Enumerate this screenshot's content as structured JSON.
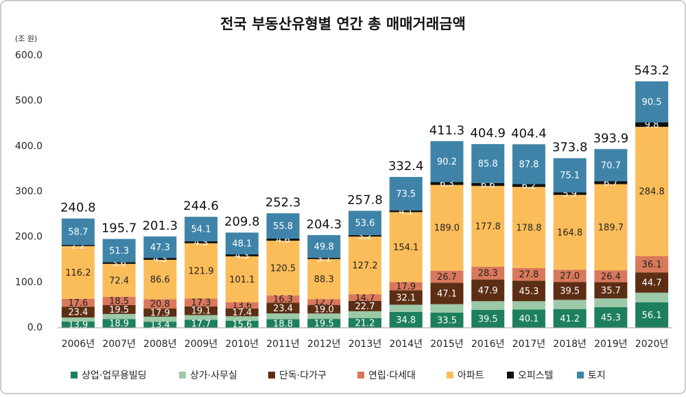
{
  "chart_data": {
    "type": "stacked_bar",
    "title": "전국 부동산유형별 연간 총 매매거래금액",
    "y_label": "(조 원)",
    "categories": [
      "2006년",
      "2007년",
      "2008년",
      "2009년",
      "2010년",
      "2011년",
      "2012년",
      "2013년",
      "2014년",
      "2015년",
      "2016년",
      "2017년",
      "2018년",
      "2019년",
      "2020년"
    ],
    "ylim": [
      0,
      600
    ],
    "yticks": [
      {
        "value": 0,
        "label": "0.0"
      },
      {
        "value": 100,
        "label": "100.0"
      },
      {
        "value": 200,
        "label": "200.0"
      },
      {
        "value": 300,
        "label": "300.0"
      },
      {
        "value": 400,
        "label": "400.0"
      },
      {
        "value": 500,
        "label": "500.0"
      },
      {
        "value": 600,
        "label": "600.0"
      }
    ],
    "grid": false,
    "legend": "bottom",
    "series": [
      {
        "name": "상업·업무용빌딩",
        "color": "#1e7f5c",
        "label_color": "#ffffff",
        "values": [
          13.9,
          18.9,
          13.4,
          17.7,
          15.6,
          18.8,
          19.5,
          21.2,
          34.8,
          33.5,
          39.5,
          40.1,
          41.2,
          45.3,
          56.1
        ],
        "value_labels": [
          "13.9",
          "18.9",
          "13.4",
          "17.7",
          "15.6",
          "18.8",
          "19.5",
          "21.2",
          "34.8",
          "33.5",
          "39.5",
          "40.1",
          "41.2",
          "45.3",
          "56.1"
        ]
      },
      {
        "name": "상가·사무실",
        "color": "#9cc9a8",
        "values": [
          8.8,
          11.5,
          11.0,
          10.2,
          9.7,
          12.9,
          11.9,
          15.2,
          15.9,
          18.5,
          19.0,
          18.4,
          20.3,
          19.4,
          21.2
        ]
      },
      {
        "name": "단독·다가구",
        "color": "#5c2e14",
        "label_color": "#ffffff",
        "values": [
          23.4,
          19.5,
          17.9,
          19.1,
          17.4,
          23.4,
          19.0,
          22.7,
          32.1,
          47.1,
          47.9,
          45.3,
          39.5,
          35.7,
          44.7
        ],
        "value_labels": [
          "23.4",
          "19.5",
          "17.9",
          "19.1",
          "17.4",
          "23.4",
          "19.0",
          "22.7",
          "32.1",
          "47.1",
          "47.9",
          "45.3",
          "39.5",
          "35.7",
          "44.7"
        ]
      },
      {
        "name": "연립·다세대",
        "color": "#d9785b",
        "label_color": "#222222",
        "values": [
          17.6,
          18.5,
          20.8,
          17.3,
          13.6,
          16.3,
          12.7,
          14.7,
          17.9,
          26.7,
          28.3,
          27.8,
          27.0,
          26.4,
          36.1
        ],
        "value_labels": [
          "17.6",
          "18.5",
          "20.8",
          "17.3",
          "13.6",
          "16.3",
          "12.7",
          "14.7",
          "17.9",
          "26.7",
          "28.3",
          "27.8",
          "27.0",
          "26.4",
          "36.1"
        ]
      },
      {
        "name": "아파트",
        "color": "#fbbd5a",
        "label_color": "#222222",
        "values": [
          116.2,
          72.4,
          86.6,
          121.9,
          101.1,
          120.5,
          88.3,
          127.2,
          154.1,
          189.0,
          177.8,
          178.8,
          164.8,
          189.7,
          284.8
        ],
        "value_labels": [
          "116.2",
          "72.4",
          "86.6",
          "121.9",
          "101.1",
          "120.5",
          "88.3",
          "127.2",
          "154.1",
          "189.0",
          "177.8",
          "178.8",
          "164.8",
          "189.7",
          "284.8"
        ]
      },
      {
        "name": "오피스텔",
        "color": "#111111",
        "label_color": "#ffffff",
        "values": [
          2.2,
          3.6,
          4.3,
          4.3,
          4.3,
          4.6,
          3.1,
          3.2,
          4.1,
          6.3,
          6.6,
          6.2,
          5.9,
          6.7,
          9.8
        ],
        "value_labels": [
          "2.2",
          "3.6",
          "4.3",
          "4.3",
          "4.3",
          "4.6",
          "3.1",
          "3.2",
          "4.1",
          "6.3",
          "6.6",
          "6.2",
          "5.9",
          "6.7",
          "9.8"
        ]
      },
      {
        "name": "토지",
        "color": "#3f84a8",
        "label_color": "#ffffff",
        "values": [
          58.7,
          51.3,
          47.3,
          54.1,
          48.1,
          55.8,
          49.8,
          53.6,
          73.5,
          90.2,
          85.8,
          87.8,
          75.1,
          70.7,
          90.5
        ],
        "value_labels": [
          "58.7",
          "51.3",
          "47.3",
          "54.1",
          "48.1",
          "55.8",
          "49.8",
          "53.6",
          "73.5",
          "90.2",
          "85.8",
          "87.8",
          "75.1",
          "70.7",
          "90.5"
        ]
      }
    ],
    "totals": [
      240.8,
      195.7,
      201.3,
      244.6,
      209.8,
      252.3,
      204.3,
      257.8,
      332.4,
      411.3,
      404.9,
      404.4,
      373.8,
      393.9,
      543.2
    ]
  }
}
